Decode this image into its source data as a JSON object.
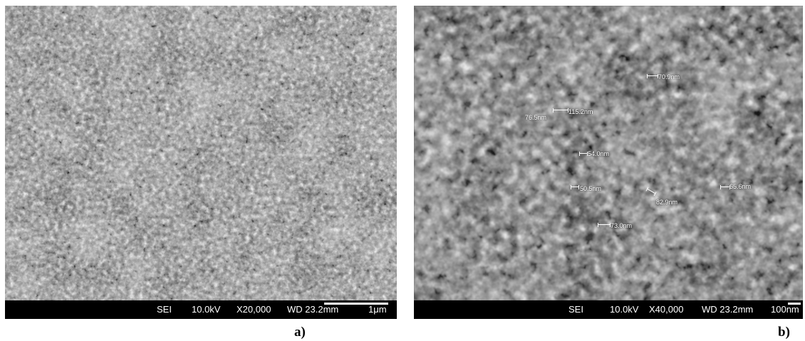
{
  "panel_a": {
    "label": "a)",
    "databar": {
      "detector": "SEI",
      "voltage": "10.0kV",
      "magnification": "X20,000",
      "working_distance": "WD 23.2mm",
      "scale": "1μm"
    }
  },
  "panel_b": {
    "label": "b)",
    "databar": {
      "detector": "SEI",
      "voltage": "10.0kV",
      "magnification": "X40,000",
      "working_distance": "WD 23.2mm",
      "scale": "100nm"
    },
    "measurements": [
      "70.9nm",
      "115.2nm",
      "76.5nm",
      "54.0nm",
      "50.5nm",
      "82.9nm",
      "65.6nm",
      "73.0nm"
    ]
  }
}
